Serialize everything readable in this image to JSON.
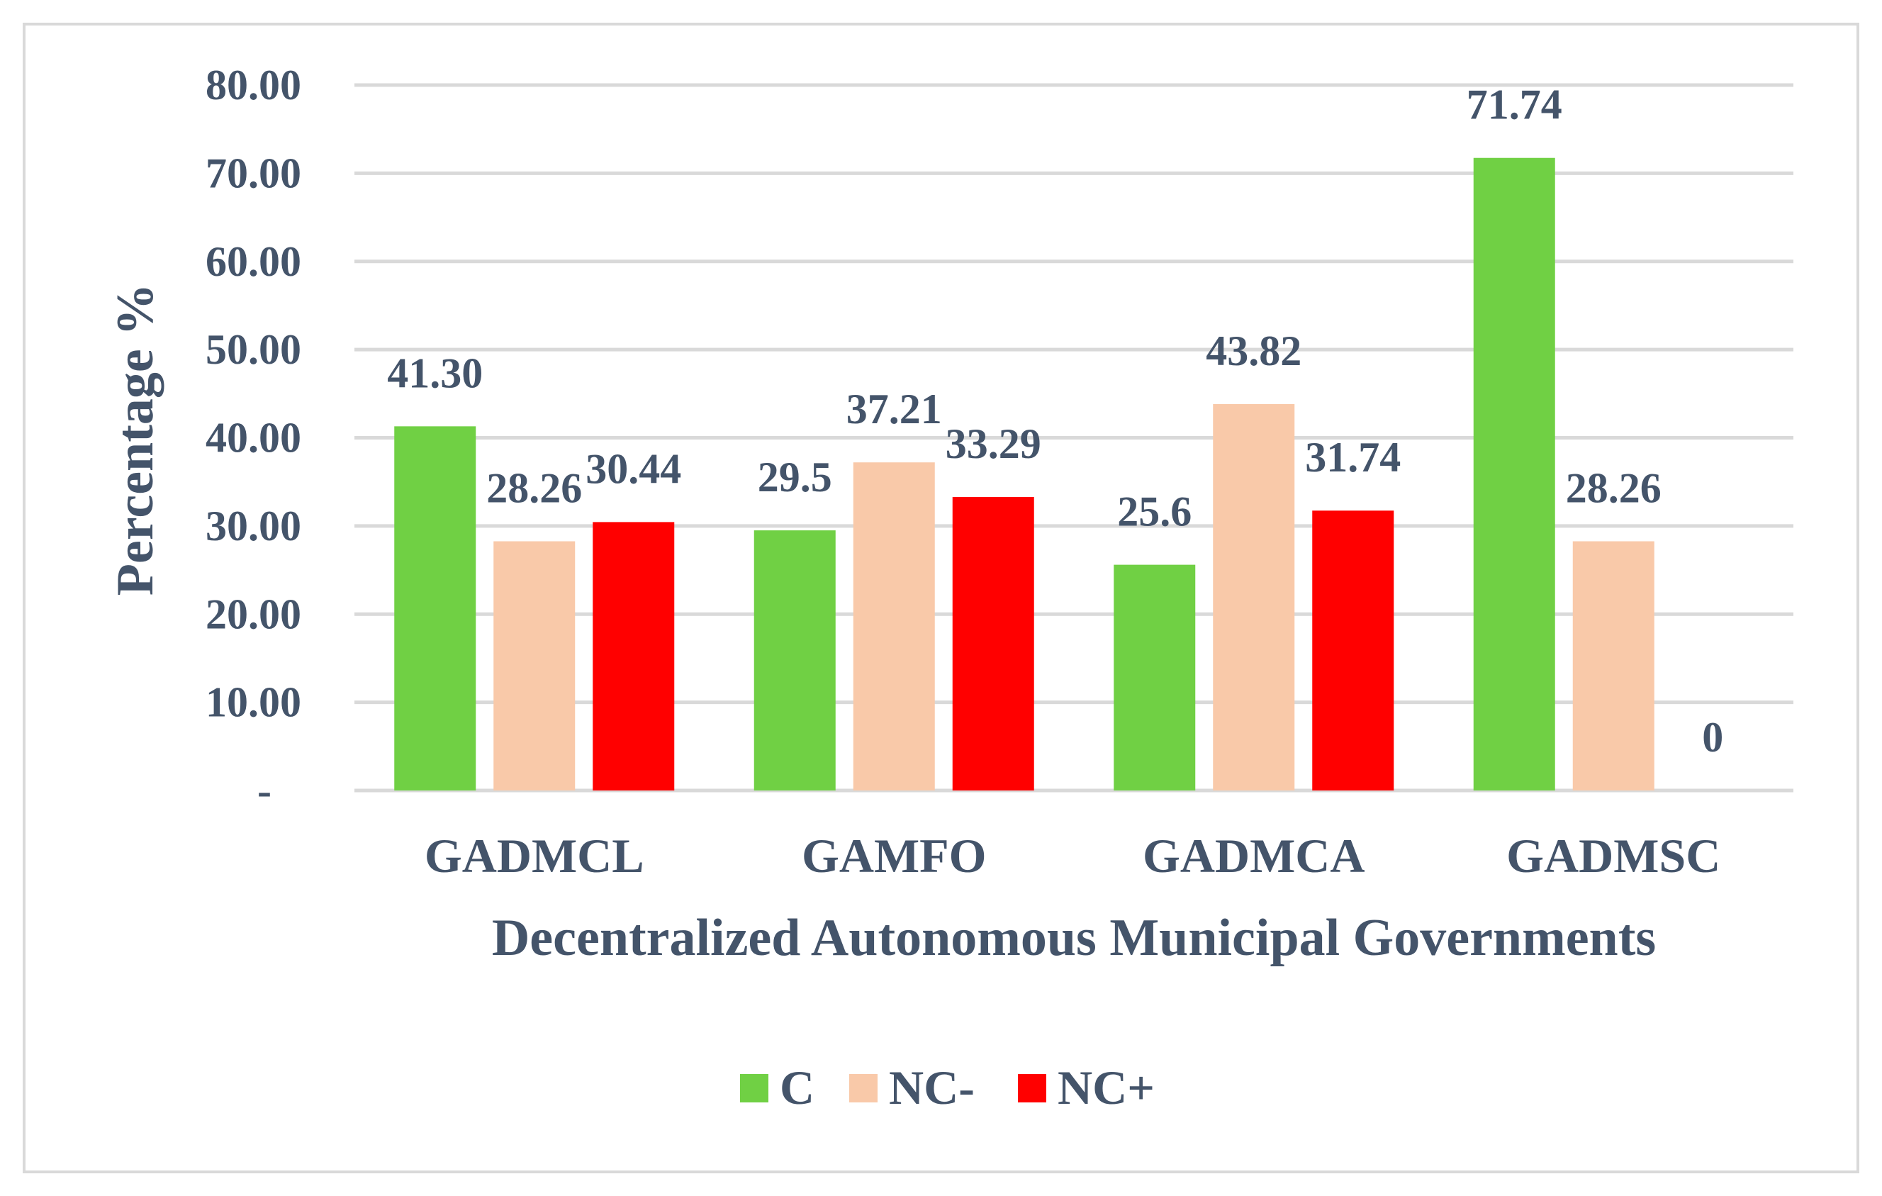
{
  "chart_data": {
    "type": "bar",
    "title": "",
    "xlabel": "Decentralized Autonomous Municipal Governments",
    "ylabel": "Percentage %",
    "ylim": [
      0,
      80
    ],
    "yticks": [
      {
        "value": 0,
        "label": "-"
      },
      {
        "value": 10,
        "label": "10.00"
      },
      {
        "value": 20,
        "label": "20.00"
      },
      {
        "value": 30,
        "label": "30.00"
      },
      {
        "value": 40,
        "label": "40.00"
      },
      {
        "value": 50,
        "label": "50.00"
      },
      {
        "value": 60,
        "label": "60.00"
      },
      {
        "value": 70,
        "label": "70.00"
      },
      {
        "value": 80,
        "label": "80.00"
      }
    ],
    "grid": true,
    "legend_position": "bottom",
    "categories": [
      "GADMCL",
      "GAMFO",
      "GADMCA",
      "GADMSC"
    ],
    "series": [
      {
        "name": "C",
        "color": "#70d044",
        "values": [
          41.3,
          29.5,
          25.6,
          71.74
        ],
        "labels": [
          "41.30",
          "29.5",
          "25.6",
          "71.74"
        ]
      },
      {
        "name": "NC-",
        "color": "#f9c9a9",
        "values": [
          28.26,
          37.21,
          43.82,
          28.26
        ],
        "labels": [
          "28.26",
          "37.21",
          "43.82",
          "28.26"
        ]
      },
      {
        "name": "NC+",
        "color": "#ff0000",
        "values": [
          30.44,
          33.29,
          31.74,
          0
        ],
        "labels": [
          "30.44",
          "33.29",
          "31.74",
          "0"
        ]
      }
    ]
  }
}
